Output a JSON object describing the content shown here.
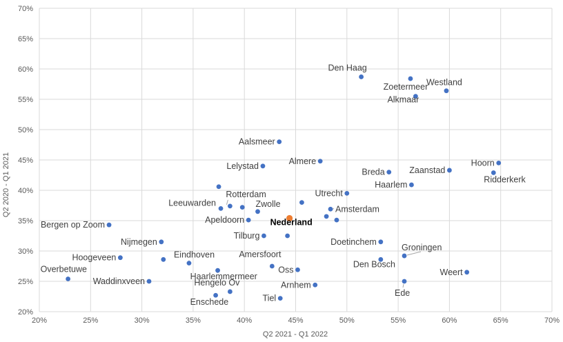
{
  "chart_data": {
    "type": "scatter",
    "xlabel": "Q2 2021 - Q1 2022",
    "ylabel": "Q2 2020 - Q1 2021",
    "xlim": [
      0.2,
      0.7
    ],
    "ylim": [
      0.2,
      0.7
    ],
    "x_ticks": [
      "20%",
      "25%",
      "30%",
      "35%",
      "40%",
      "45%",
      "50%",
      "55%",
      "60%",
      "65%",
      "70%"
    ],
    "y_ticks": [
      "20%",
      "25%",
      "30%",
      "35%",
      "40%",
      "45%",
      "50%",
      "55%",
      "60%",
      "65%",
      "70%"
    ],
    "grid": true,
    "colors": {
      "default": "#4472c4",
      "highlight": "#ed7d31",
      "grid": "#d9d9d9",
      "leader": "#a6a6a6"
    },
    "points": [
      {
        "label": "Westland",
        "x": 0.597,
        "y": 0.564
      },
      {
        "label": "Alkmaar",
        "x": 0.567,
        "y": 0.555
      },
      {
        "label": "Den Haag",
        "x": 0.514,
        "y": 0.587
      },
      {
        "label": "Zoetermeer",
        "x": 0.562,
        "y": 0.584
      },
      {
        "label": "Aalsmeer",
        "x": 0.434,
        "y": 0.48
      },
      {
        "label": "Almere",
        "x": 0.474,
        "y": 0.448
      },
      {
        "label": "Lelystad",
        "x": 0.418,
        "y": 0.44
      },
      {
        "label": "Breda",
        "x": 0.541,
        "y": 0.43
      },
      {
        "label": "Zaanstad",
        "x": 0.6,
        "y": 0.433
      },
      {
        "label": "Hoorn",
        "x": 0.648,
        "y": 0.445
      },
      {
        "label": "Ridderkerk",
        "x": 0.643,
        "y": 0.429
      },
      {
        "label": "Haarlem",
        "x": 0.563,
        "y": 0.409
      },
      {
        "label": "",
        "x": 0.375,
        "y": 0.406
      },
      {
        "label": "Utrecht",
        "x": 0.5,
        "y": 0.395
      },
      {
        "label": "Rotterdam",
        "x": 0.386,
        "y": 0.374
      },
      {
        "label": "Zwolle",
        "x": 0.413,
        "y": 0.365
      },
      {
        "label": "Leeuwarden",
        "x": 0.377,
        "y": 0.37
      },
      {
        "label": "",
        "x": 0.398,
        "y": 0.372
      },
      {
        "label": "",
        "x": 0.456,
        "y": 0.38
      },
      {
        "label": "Amsterdam",
        "x": 0.484,
        "y": 0.369
      },
      {
        "label": "",
        "x": 0.48,
        "y": 0.357
      },
      {
        "label": "",
        "x": 0.49,
        "y": 0.351
      },
      {
        "label": "Apeldoorn",
        "x": 0.404,
        "y": 0.351
      },
      {
        "label": "Nederland",
        "x": 0.444,
        "y": 0.354,
        "highlight": true
      },
      {
        "label": "Bergen op Zoom",
        "x": 0.268,
        "y": 0.343
      },
      {
        "label": "Tilburg",
        "x": 0.419,
        "y": 0.325
      },
      {
        "label": "",
        "x": 0.442,
        "y": 0.325
      },
      {
        "label": "Nijmegen",
        "x": 0.319,
        "y": 0.315
      },
      {
        "label": "Doetinchem",
        "x": 0.533,
        "y": 0.315
      },
      {
        "label": "Groningen",
        "x": 0.556,
        "y": 0.292
      },
      {
        "label": "Hoogeveen",
        "x": 0.279,
        "y": 0.289
      },
      {
        "label": "",
        "x": 0.321,
        "y": 0.286
      },
      {
        "label": "Eindhoven",
        "x": 0.346,
        "y": 0.28
      },
      {
        "label": "Den Bosch",
        "x": 0.533,
        "y": 0.286
      },
      {
        "label": "Amersfoort",
        "x": 0.427,
        "y": 0.275
      },
      {
        "label": "Oss",
        "x": 0.452,
        "y": 0.269
      },
      {
        "label": "Haarlemmermeer",
        "x": 0.374,
        "y": 0.268
      },
      {
        "label": "Weert",
        "x": 0.617,
        "y": 0.265
      },
      {
        "label": "Overbetuwe",
        "x": 0.228,
        "y": 0.254
      },
      {
        "label": "Waddinxveen",
        "x": 0.307,
        "y": 0.25
      },
      {
        "label": "Ede",
        "x": 0.556,
        "y": 0.25
      },
      {
        "label": "Arnhem",
        "x": 0.469,
        "y": 0.244
      },
      {
        "label": "Hengelo Ov",
        "x": 0.386,
        "y": 0.233
      },
      {
        "label": "Enschede",
        "x": 0.372,
        "y": 0.227
      },
      {
        "label": "Tiel",
        "x": 0.435,
        "y": 0.222
      }
    ]
  }
}
